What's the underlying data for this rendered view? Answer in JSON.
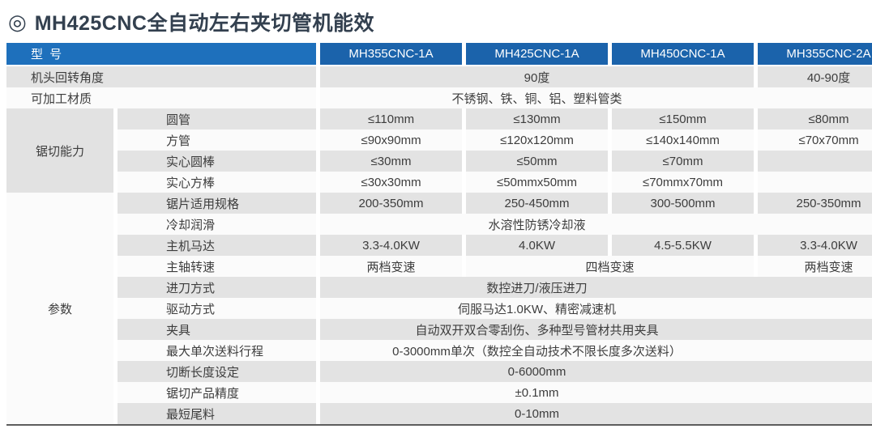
{
  "title": {
    "icon": "◎",
    "text": "MH425CNC全自动左右夹切管机能效"
  },
  "colors": {
    "header_label_bg": "#1e70bc",
    "header_model_bg": "#1b63ab",
    "row_gray": "#e3e3e3",
    "row_white": "#fbfbfb",
    "title_text": "#33404f",
    "bottom_border": "#5d5d5d"
  },
  "table": {
    "header": {
      "label": "型 号",
      "models": [
        "MH355CNC-1A",
        "MH425CNC-1A",
        "MH450CNC-1A",
        "MH355CNC-2A"
      ]
    },
    "groups": {
      "sawing": "锯切能力",
      "params": "参数"
    },
    "rows": [
      {
        "label": "机头回转角度",
        "v13": "90度",
        "v4": "40-90度"
      },
      {
        "label": "可加工材质",
        "span": "不锈钢、铁、铜、铝、塑料管类"
      },
      {
        "label": "圆管",
        "v1": "≤110mm",
        "v2": "≤130mm",
        "v3": "≤150mm",
        "v4": "≤80mm"
      },
      {
        "label": "方管",
        "v1": "≤90x90mm",
        "v2": "≤120x120mm",
        "v3": "≤140x140mm",
        "v4": "≤70x70mm"
      },
      {
        "label": "实心圆棒",
        "v1": "≤30mm",
        "v2": "≤50mm",
        "v3": "≤70mm",
        "v4": ""
      },
      {
        "label": "实心方棒",
        "v1": "≤30x30mm",
        "v2": "≤50mmx50mm",
        "v3": "≤70mmx70mm",
        "v4": ""
      },
      {
        "label": "锯片适用规格",
        "v1": "200-350mm",
        "v2": "250-450mm",
        "v3": "300-500mm",
        "v4": "250-350mm"
      },
      {
        "label": "冷却润滑",
        "span": "水溶性防锈冷却液"
      },
      {
        "label": "主机马达",
        "v1": "3.3-4.0KW",
        "v2": "4.0KW",
        "v3": "4.5-5.5KW",
        "v4": "3.3-4.0KW"
      },
      {
        "label": "主轴转速",
        "v1": "两档变速",
        "v23": "四档变速",
        "v4": "两档变速"
      },
      {
        "label": "进刀方式",
        "span": "数控进刀/液压进刀"
      },
      {
        "label": "驱动方式",
        "span": "伺服马达1.0KW、精密减速机"
      },
      {
        "label": "夹具",
        "span": "自动双开双合零刮伤、多种型号管材共用夹具"
      },
      {
        "label": "最大单次送料行程",
        "span": "0-3000mm单次（数控全自动技术不限长度多次送料）"
      },
      {
        "label": "切断长度设定",
        "span": "0-6000mm"
      },
      {
        "label": "锯切产品精度",
        "span": "±0.1mm"
      },
      {
        "label": "最短尾料",
        "span": "0-10mm"
      }
    ]
  }
}
